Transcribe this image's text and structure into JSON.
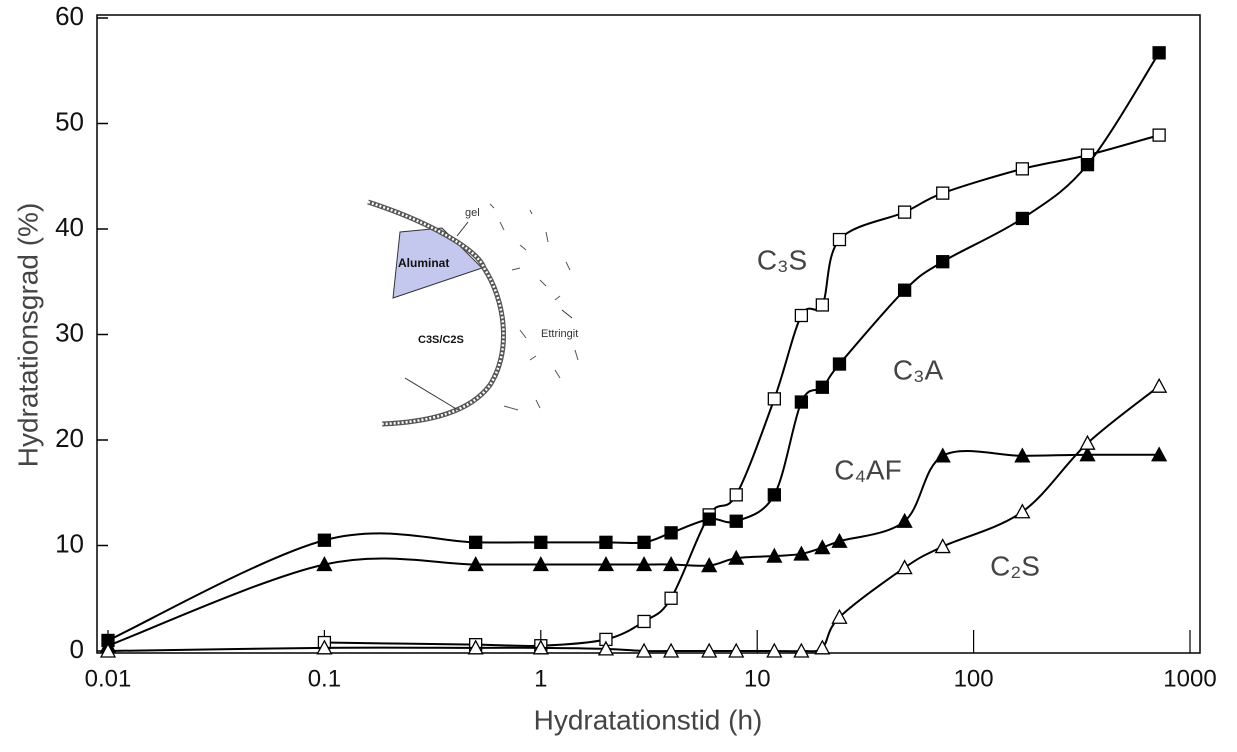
{
  "chart_data": {
    "type": "scatter",
    "xlabel": "Hydratationstid (h)",
    "ylabel": "Hydratationsgrad (%)",
    "xscale": "log",
    "xlim": [
      0.01,
      1000
    ],
    "xticks": [
      0.01,
      0.1,
      1,
      10,
      100,
      1000
    ],
    "ylim": [
      0,
      60
    ],
    "yticks": [
      0,
      10,
      20,
      30,
      40,
      50,
      60
    ],
    "grid": false,
    "smooth_lines": true,
    "series": [
      {
        "name": "C₃S",
        "marker": "square",
        "filled": false,
        "color": "#000000",
        "x": [
          0.1,
          0.5,
          1,
          2,
          3,
          4,
          6,
          8,
          12,
          16,
          20,
          24,
          48,
          72,
          168,
          336,
          720
        ],
        "values": [
          0.8,
          0.6,
          0.5,
          1.1,
          2.8,
          5.0,
          12.9,
          14.8,
          23.9,
          31.8,
          32.8,
          39.0,
          41.6,
          43.4,
          45.7,
          47.0,
          48.9
        ]
      },
      {
        "name": "C₃A",
        "marker": "square",
        "filled": true,
        "color": "#000000",
        "x": [
          0.01,
          0.1,
          0.5,
          1,
          2,
          3,
          4,
          6,
          8,
          12,
          16,
          20,
          24,
          48,
          72,
          168,
          336,
          720
        ],
        "values": [
          1.0,
          10.5,
          10.3,
          10.3,
          10.3,
          10.3,
          11.2,
          12.5,
          12.3,
          14.8,
          23.6,
          25.0,
          27.2,
          34.2,
          36.9,
          41.0,
          46.1,
          56.7
        ]
      },
      {
        "name": "C₄AF",
        "marker": "triangle",
        "filled": true,
        "color": "#000000",
        "x": [
          0.01,
          0.1,
          0.5,
          1,
          2,
          3,
          4,
          6,
          8,
          12,
          16,
          20,
          24,
          48,
          72,
          168,
          336,
          720
        ],
        "values": [
          0.5,
          8.2,
          8.2,
          8.2,
          8.2,
          8.2,
          8.2,
          8.1,
          8.8,
          9.0,
          9.2,
          9.8,
          10.4,
          12.3,
          18.5,
          18.5,
          18.6,
          18.6
        ]
      },
      {
        "name": "C₂S",
        "marker": "triangle",
        "filled": false,
        "color": "#000000",
        "x": [
          0.01,
          0.1,
          0.5,
          1,
          2,
          3,
          4,
          6,
          8,
          12,
          16,
          20,
          24,
          48,
          72,
          168,
          336,
          720
        ],
        "values": [
          0,
          0.3,
          0.3,
          0.3,
          0.2,
          0,
          0,
          0,
          0,
          0,
          0,
          0.3,
          3.2,
          7.9,
          9.9,
          13.2,
          19.7,
          25.1
        ]
      }
    ],
    "inset_labels": [
      "gel",
      "Aluminat",
      "C3S/C2S",
      "Ettringit"
    ]
  }
}
